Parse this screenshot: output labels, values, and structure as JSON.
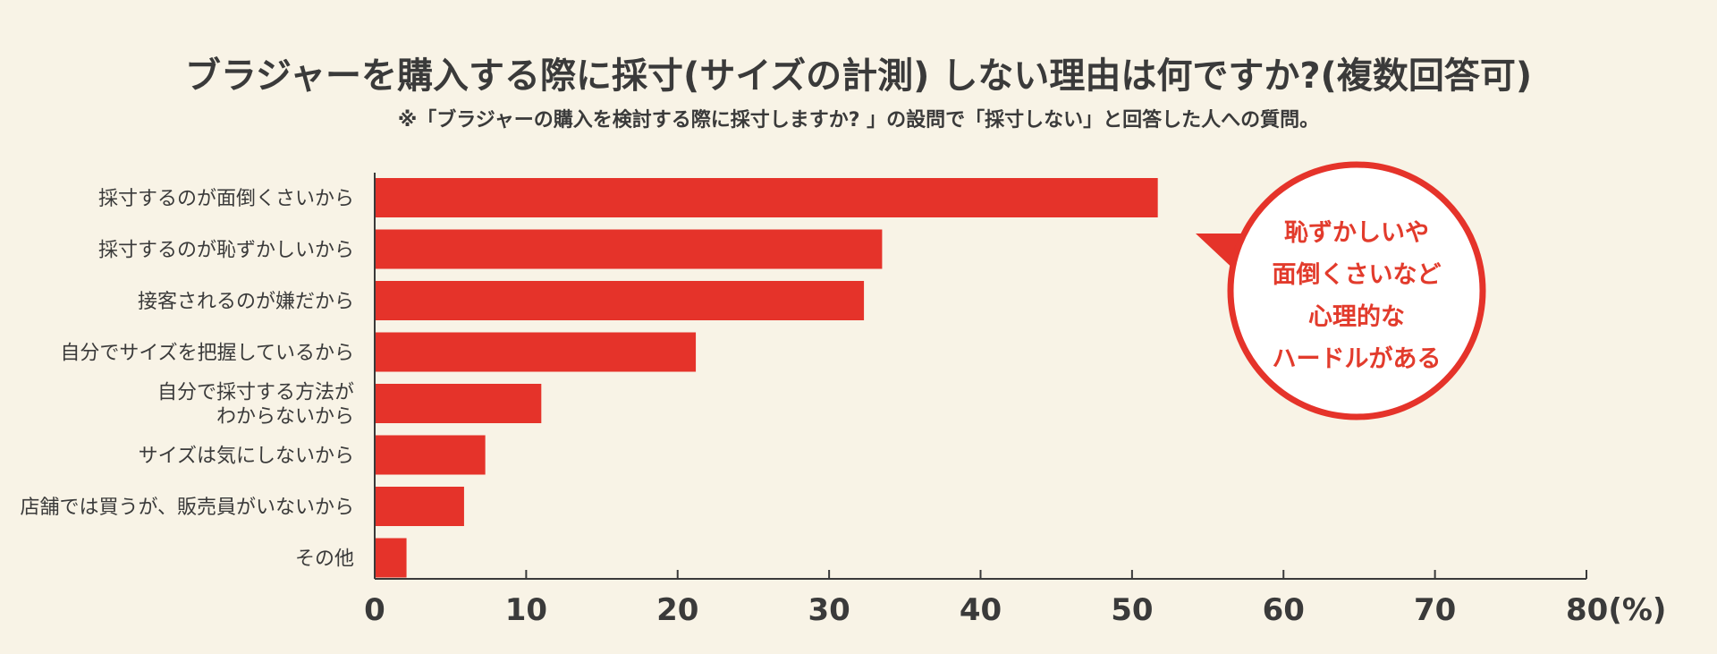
{
  "header": {
    "title": "ブラジャーを購入する際に採寸(サイズの計測) しない理由は何ですか?(複数回答可)",
    "note": "※「ブラジャーの購入を検討する際に採寸しますか? 」の設問で「採寸しない」と回答した人への質問。"
  },
  "callout": {
    "lines": [
      "恥ずかしいや",
      "面倒くさいなど",
      "心理的な",
      "ハードルがある"
    ]
  },
  "colors": {
    "bar": "#e5332a",
    "callout_text": "#e23b2c",
    "background": "#f8f3e6",
    "text": "#3a3a3a"
  },
  "chart_data": {
    "type": "bar",
    "orientation": "horizontal",
    "categories": [
      [
        "採寸するのが面倒くさいから"
      ],
      [
        "採寸するのが恥ずかしいから"
      ],
      [
        "接客されるのが嫌だから"
      ],
      [
        "自分でサイズを把握しているから"
      ],
      [
        "自分で採寸する方法が",
        "わからないから"
      ],
      [
        "サイズは気にしないから"
      ],
      [
        "店舗では買うが、販売員がいないから"
      ],
      [
        "その他"
      ]
    ],
    "values": [
      51.7,
      33.5,
      32.3,
      21.2,
      11.0,
      7.3,
      5.9,
      2.1
    ],
    "xlim": [
      0,
      80
    ],
    "xticks": [
      0,
      10,
      20,
      30,
      40,
      50,
      60,
      70,
      80
    ],
    "xtick_labels": [
      "0",
      "10",
      "20",
      "30",
      "40",
      "50",
      "60",
      "70",
      "80(%)"
    ],
    "grid": false,
    "legend": "none"
  }
}
